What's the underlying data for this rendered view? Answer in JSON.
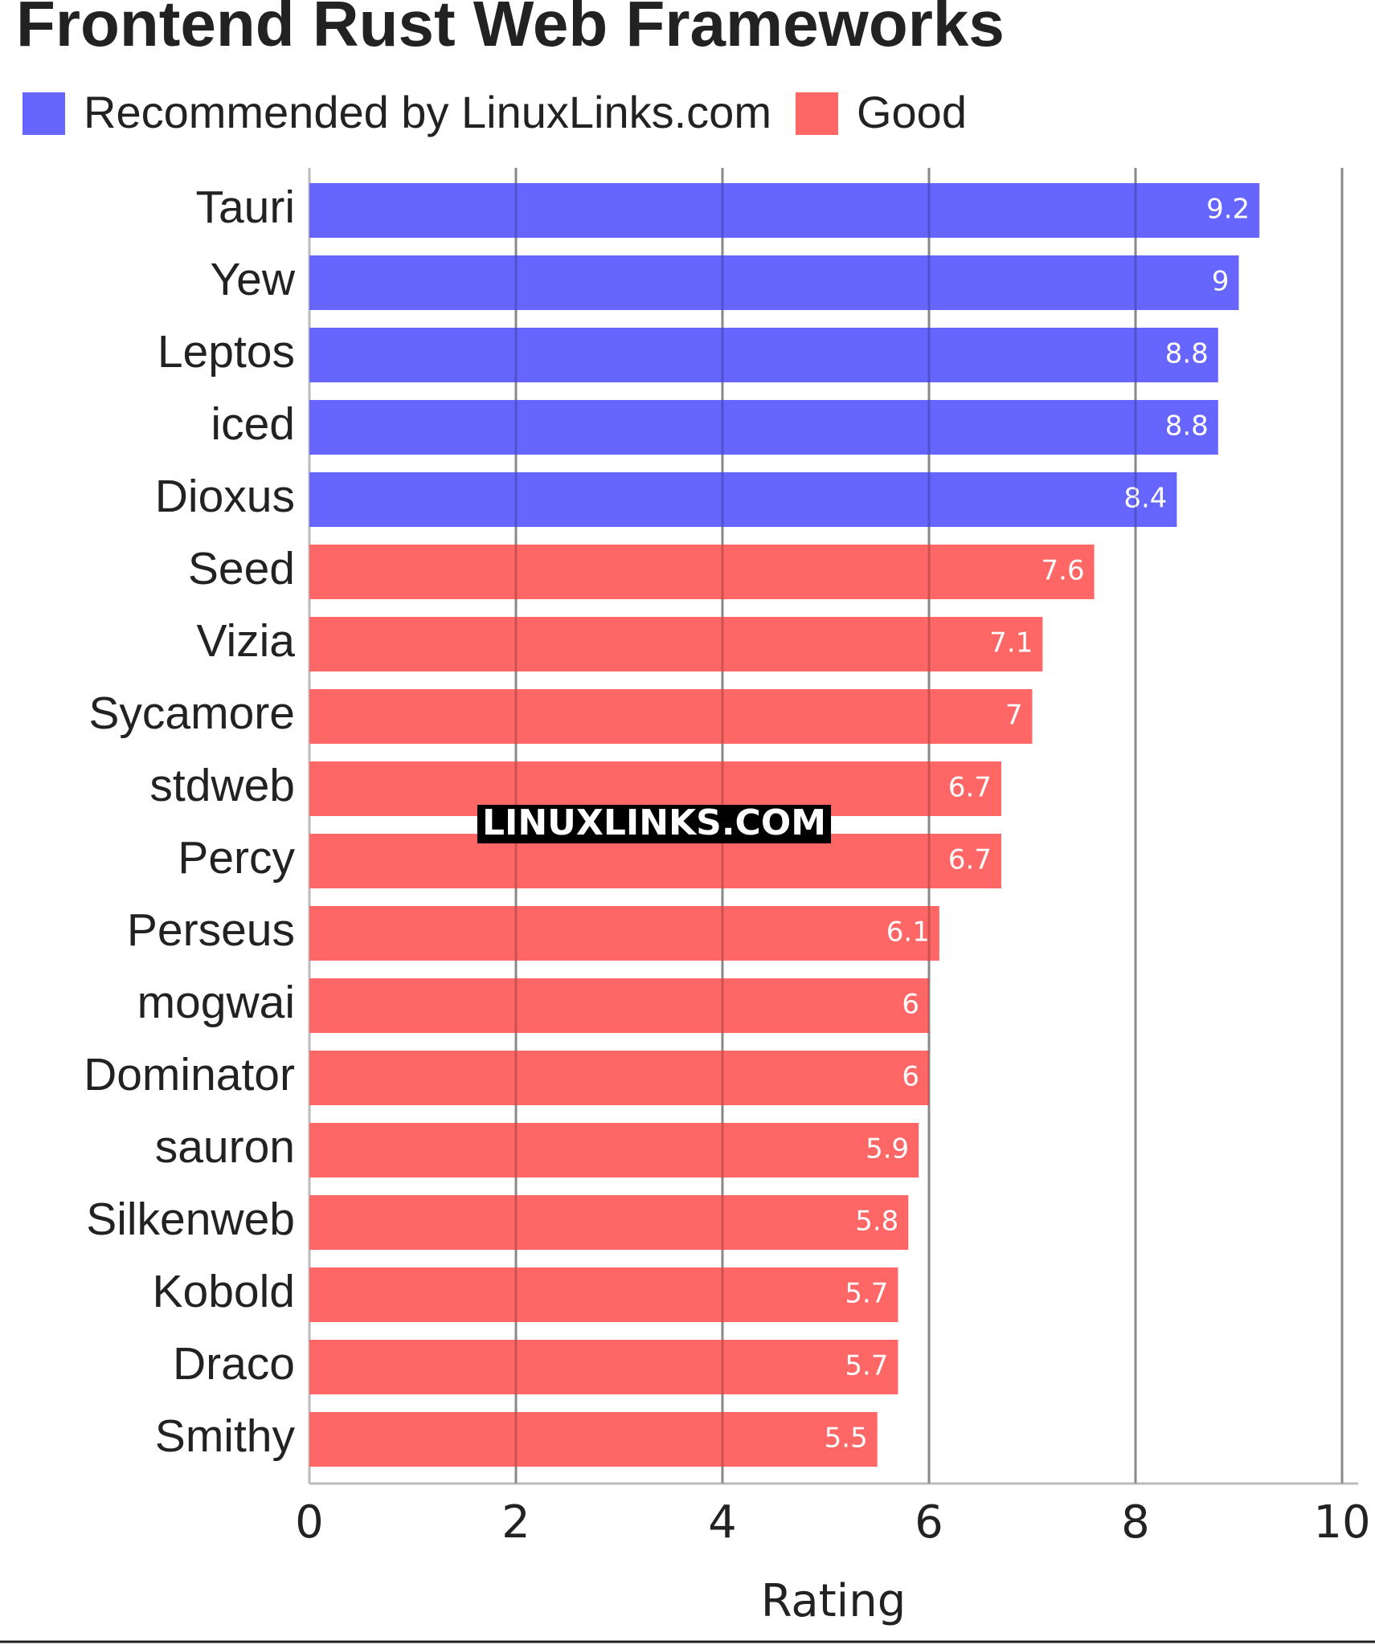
{
  "chart_data": {
    "type": "bar",
    "orientation": "horizontal",
    "title": "Frontend Rust Web Frameworks",
    "categories": [
      "Tauri",
      "Yew",
      "Leptos",
      "iced",
      "Dioxus",
      "Seed",
      "Vizia",
      "Sycamore",
      "stdweb",
      "Percy",
      "Perseus",
      "mogwai",
      "Dominator",
      "sauron",
      "Silkenweb",
      "Kobold",
      "Draco",
      "Smithy"
    ],
    "series": [
      {
        "name": "Recommended by LinuxLinks.com",
        "color": "#6666ff",
        "values": [
          9.2,
          9,
          8.8,
          8.8,
          8.4,
          null,
          null,
          null,
          null,
          null,
          null,
          null,
          null,
          null,
          null,
          null,
          null,
          null
        ]
      },
      {
        "name": "Good",
        "color": "#ff6666",
        "values": [
          null,
          null,
          null,
          null,
          null,
          7.6,
          7.1,
          7,
          6.7,
          6.7,
          6.1,
          6,
          6,
          5.9,
          5.8,
          5.7,
          5.7,
          5.5
        ]
      }
    ],
    "xlabel": "Rating",
    "xlim": [
      0,
      10
    ],
    "xticks": [
      0,
      2,
      4,
      6,
      8,
      10
    ],
    "grid": true,
    "legend": "top-left",
    "watermark": "LINUXLINKS.COM"
  }
}
